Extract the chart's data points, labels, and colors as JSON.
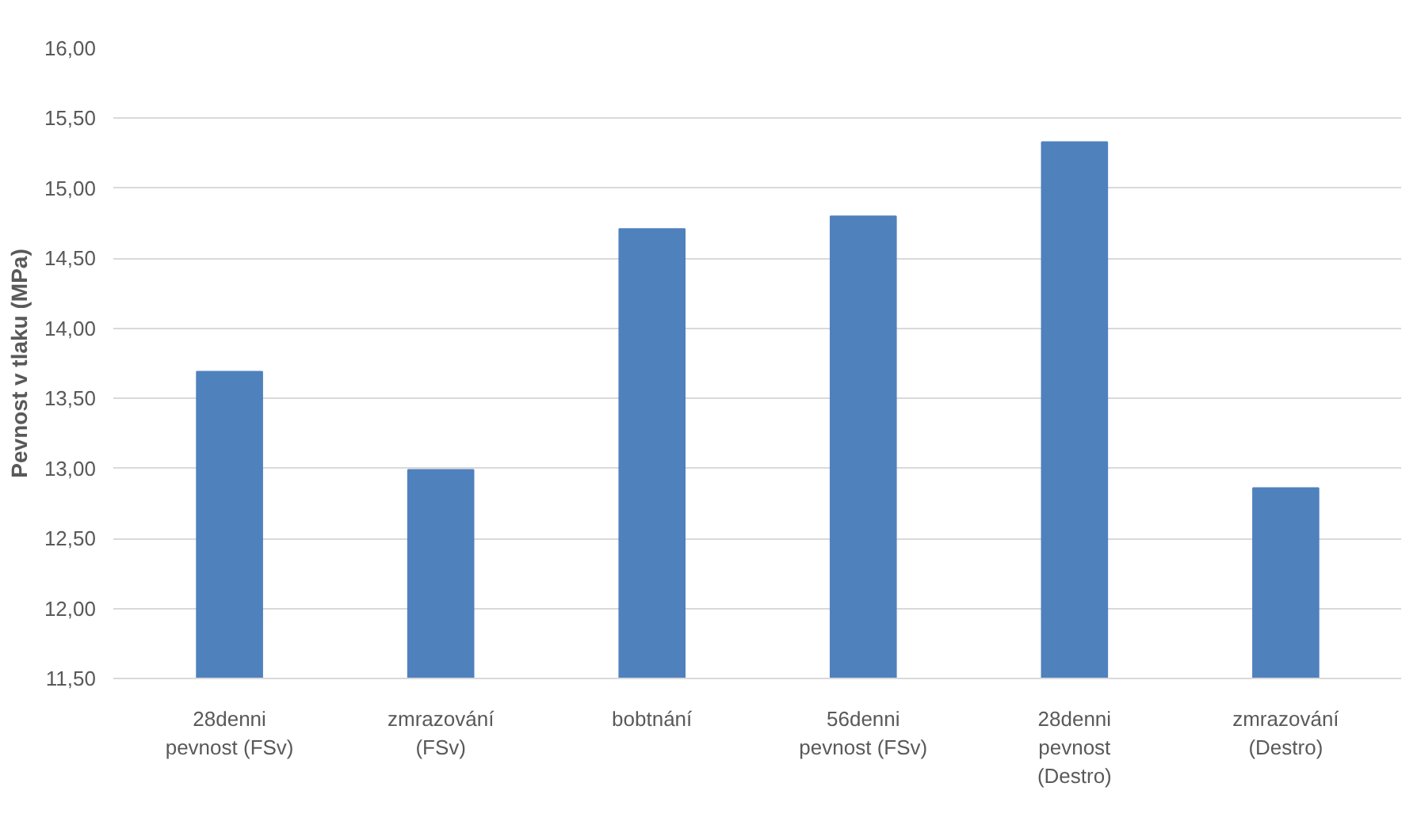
{
  "chart_data": {
    "type": "bar",
    "ylabel": "Pevnost v tlaku (MPa)",
    "categories": [
      "28denni pevnost (FSv)",
      "zmrazování (FSv)",
      "bobtnání",
      "56denni pevnost (FSv)",
      "28denni pevnost (Destro)",
      "zmrazování (Destro)"
    ],
    "values": [
      13.69,
      12.99,
      14.71,
      14.8,
      15.33,
      12.86
    ],
    "color": "#4f81bd",
    "ylim": [
      11.5,
      16.0
    ],
    "yticks": [
      {
        "value": 11.5,
        "label": "11,50"
      },
      {
        "value": 12.0,
        "label": "12,00"
      },
      {
        "value": 12.5,
        "label": "12,50"
      },
      {
        "value": 13.0,
        "label": "13,00"
      },
      {
        "value": 13.5,
        "label": "13,50"
      },
      {
        "value": 14.0,
        "label": "14,00"
      },
      {
        "value": 14.5,
        "label": "14,50"
      },
      {
        "value": 15.0,
        "label": "15,00"
      },
      {
        "value": 15.5,
        "label": "15,50"
      },
      {
        "value": 16.0,
        "label": "16,00"
      }
    ],
    "grid": "y"
  }
}
